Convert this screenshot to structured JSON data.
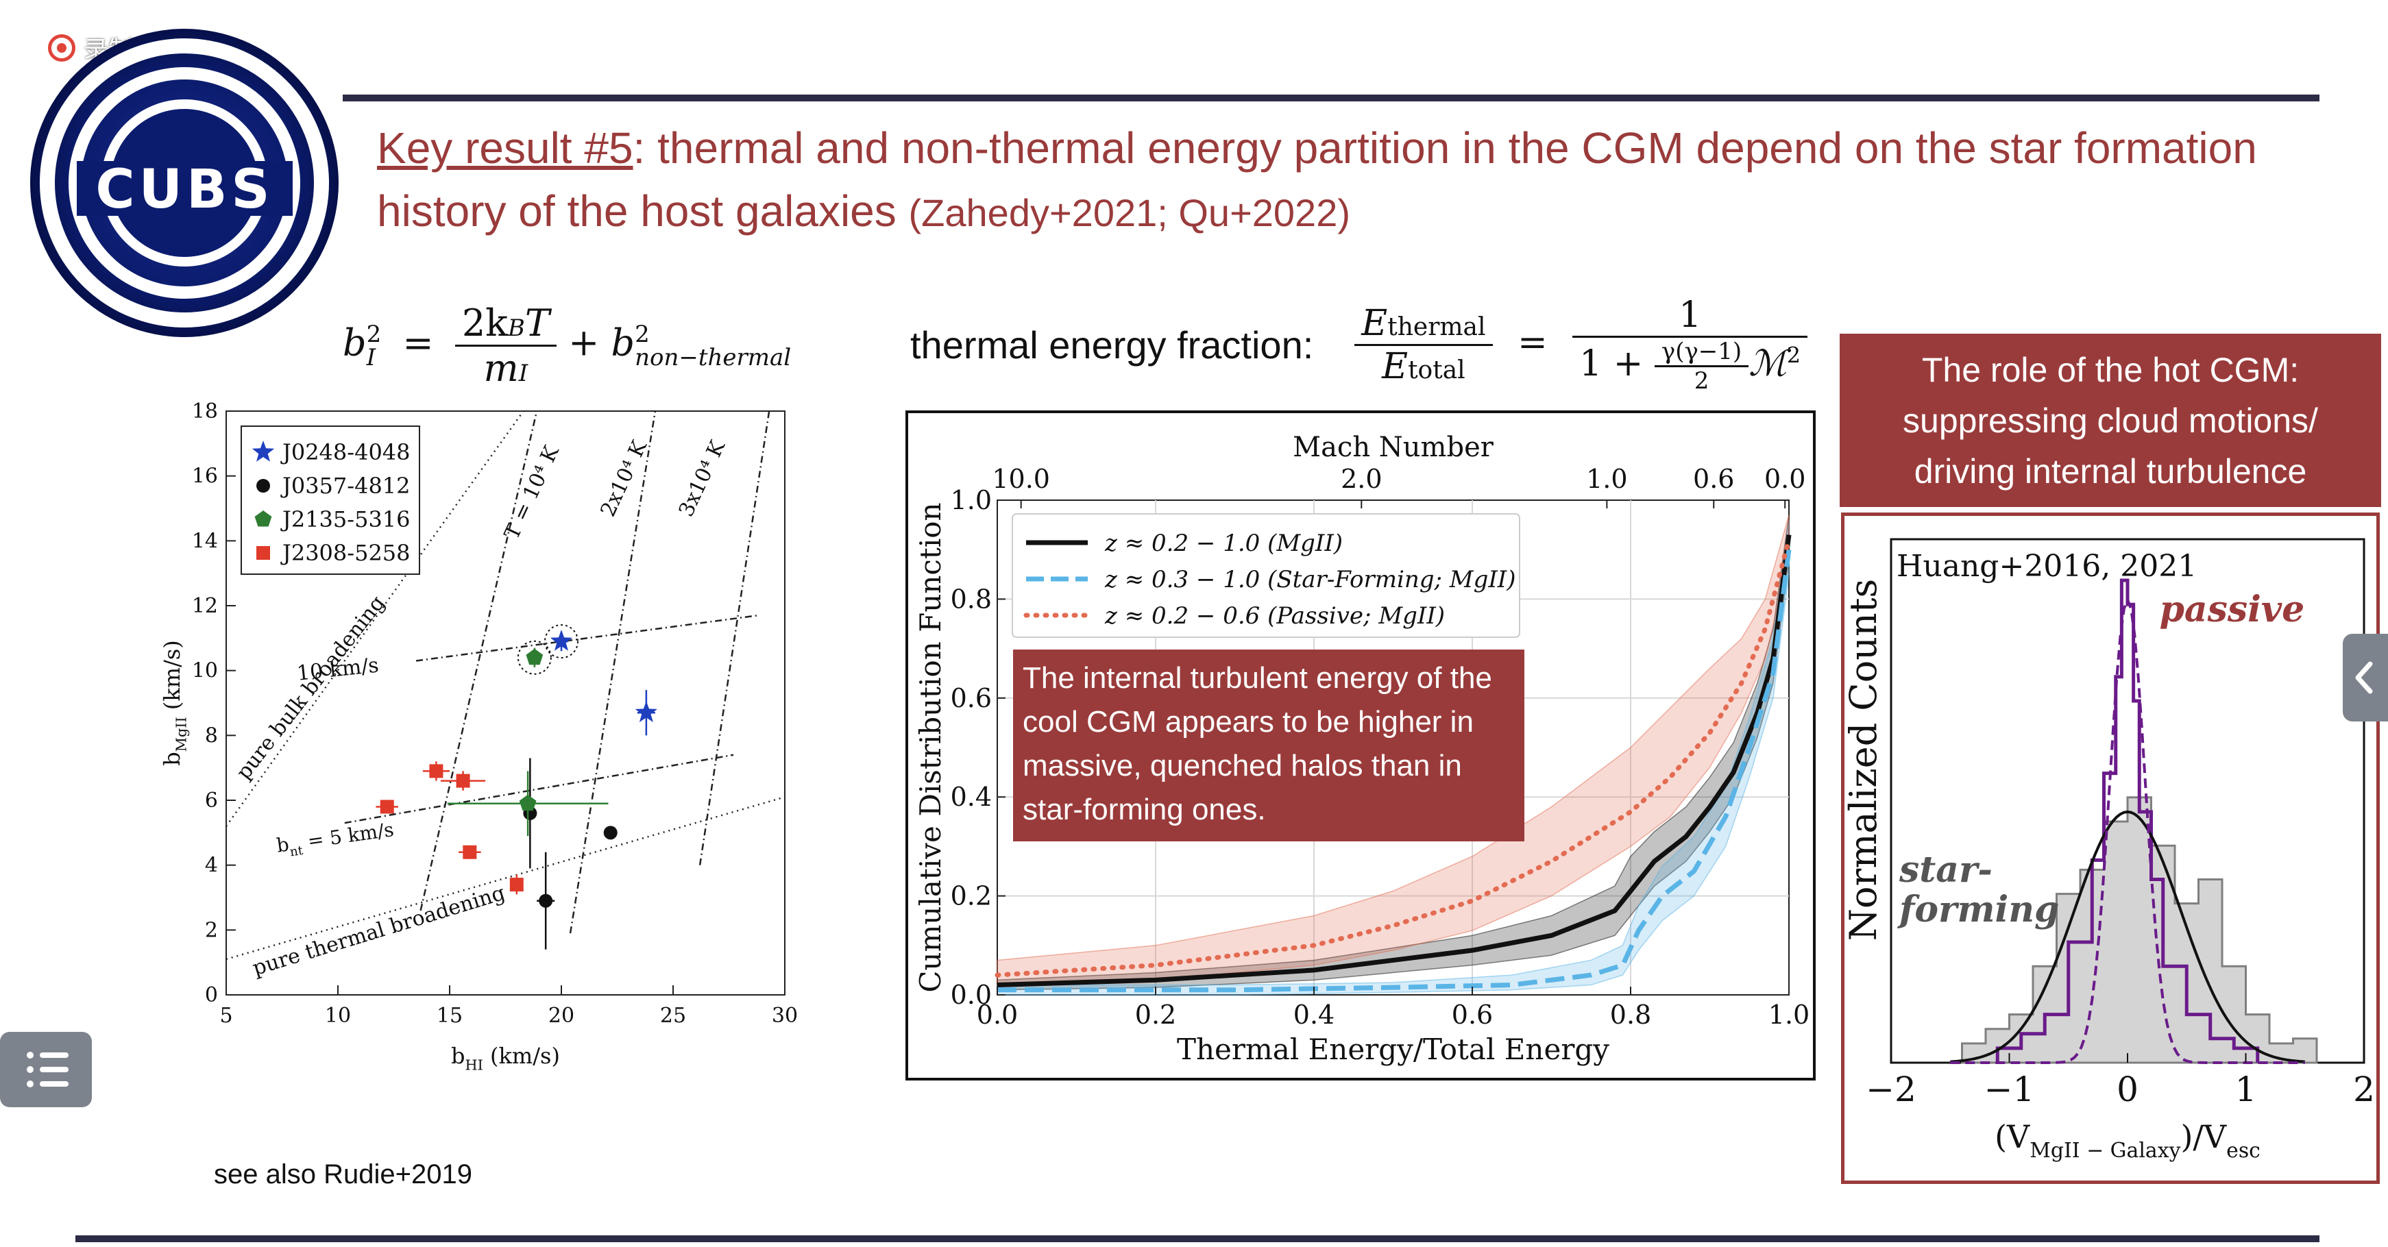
{
  "recording": {
    "label": "录制中"
  },
  "logo": {
    "text": "CUBS"
  },
  "title": {
    "key_label": "Key result #5",
    "rest": ": thermal and non-thermal energy partition in the CGM depend on the star formation history of the host galaxies",
    "citation": "(Zahedy+2021; Qu+2022)"
  },
  "equation_left": {
    "lhs": "b",
    "lhs_sup": "2",
    "lhs_sub": "I",
    "num": "2k",
    "num_sub": "B",
    "num_t": "T",
    "den": "m",
    "den_sub": "I",
    "plus": "+ b",
    "rhs_sup": "2",
    "rhs_sub": "non−thermal"
  },
  "equation_right": {
    "label": "thermal energy fraction:",
    "lhs_num": "E",
    "lhs_num_sub": "thermal",
    "lhs_den": "E",
    "lhs_den_sub": "total",
    "one": "1",
    "den_pre": "1 +",
    "gamma_num": "γ(γ−1)",
    "gamma_den": "2",
    "mach": "ℳ",
    "mach_sup": "2"
  },
  "side_panel": {
    "heading": "The role of the hot CGM: suppressing cloud motions/ driving internal turbulence"
  },
  "see_also": "see also Rudie+2019",
  "colors": {
    "accent": "#9a3b3b",
    "rule": "#2c2c46",
    "blue": "#1f3fbf",
    "green": "#2e7d32",
    "red": "#e03a2a",
    "purple": "#6a1b8a",
    "cyan": "#5ab4e6",
    "salmon": "#e36b52"
  },
  "chart_data": [
    {
      "type": "scatter",
      "xlabel": "b",
      "xlabel_sub": "HI",
      "xlabel_unit": " (km/s)",
      "ylabel": "b",
      "ylabel_sub": "MgII",
      "ylabel_unit": " (km/s)",
      "xlim": [
        5,
        30
      ],
      "ylim": [
        0,
        18
      ],
      "xticks": [
        5,
        10,
        15,
        20,
        25,
        30
      ],
      "yticks": [
        0,
        2,
        4,
        6,
        8,
        10,
        12,
        14,
        16,
        18
      ],
      "legend_position": "top-left",
      "series": [
        {
          "name": "J0248-4048",
          "marker": "star",
          "color": "#1f3fbf",
          "points": [
            {
              "x": 20.0,
              "y": 10.9,
              "xerr": 0.3,
              "yerr": 0.3,
              "circled": true
            },
            {
              "x": 23.8,
              "y": 8.7,
              "xerr": 0.4,
              "yerr": 0.7,
              "circled": false
            }
          ]
        },
        {
          "name": "J0357-4812",
          "marker": "circle",
          "color": "#111111",
          "points": [
            {
              "x": 18.6,
              "y": 5.6,
              "xerr": 0.3,
              "yerr": 1.7
            },
            {
              "x": 22.2,
              "y": 5.0,
              "xerr": 0.2,
              "yerr": 0.2
            },
            {
              "x": 19.3,
              "y": 2.9,
              "xerr": 0.4,
              "yerr": 1.5
            }
          ]
        },
        {
          "name": "J2135-5316",
          "marker": "pentagon",
          "color": "#2e7d32",
          "points": [
            {
              "x": 18.8,
              "y": 10.4,
              "xerr": 0.3,
              "yerr": 0.3,
              "circled": true
            },
            {
              "x": 18.5,
              "y": 5.9,
              "xerr": 3.6,
              "yerr": 1.0
            }
          ]
        },
        {
          "name": "J2308-5258",
          "marker": "square",
          "color": "#e03a2a",
          "points": [
            {
              "x": 12.2,
              "y": 5.8,
              "xerr": 0.5,
              "yerr": 0.1
            },
            {
              "x": 14.4,
              "y": 6.9,
              "xerr": 0.6,
              "yerr": 0.3
            },
            {
              "x": 15.6,
              "y": 6.6,
              "xerr": 1.0,
              "yerr": 0.3
            },
            {
              "x": 15.9,
              "y": 4.4,
              "xerr": 0.5,
              "yerr": 0.1
            },
            {
              "x": 18.0,
              "y": 3.4,
              "xerr": 0.2,
              "yerr": 0.3
            }
          ]
        }
      ],
      "lines": [
        {
          "label": "pure bulk broadening",
          "from": [
            5,
            5.2
          ],
          "to": [
            18.3,
            18
          ]
        },
        {
          "label": "pure thermal broadening",
          "from": [
            5,
            1.1
          ],
          "to": [
            30,
            6.1
          ]
        },
        {
          "label": "T = 10⁴ K",
          "from": [
            13.7,
            2.6
          ],
          "to": [
            18.9,
            18
          ]
        },
        {
          "label": "2x10⁴ K",
          "from": [
            20.4,
            1.9
          ],
          "to": [
            24.2,
            18
          ]
        },
        {
          "label": "3x10⁴ K",
          "from": [
            26.2,
            4.0
          ],
          "to": [
            29.3,
            18
          ]
        },
        {
          "label": "10 km/s",
          "from": [
            13.5,
            10.3
          ],
          "to": [
            28.8,
            11.7
          ]
        },
        {
          "label": "b_nt = 5 km/s",
          "from": [
            10.3,
            5.3
          ],
          "to": [
            27.7,
            7.4
          ]
        }
      ],
      "line_labels": {
        "bulk": "pure bulk broadening",
        "thermal": "pure thermal broadening",
        "t1": "T = 10⁴ K",
        "t2": "2x10⁴ K",
        "t3": "3x10⁴ K",
        "nt10": "10 km/s",
        "nt5_pre": "b",
        "nt5_sub": "nt",
        "nt5_post": " = 5 km/s"
      }
    },
    {
      "type": "line",
      "xlabel": "Thermal Energy/Total Energy",
      "ylabel": "Cumulative Distribution Function",
      "top_axis_label": "Mach Number",
      "top_ticks": [
        {
          "label": "10.0",
          "x": 0.03
        },
        {
          "label": "2.0",
          "x": 0.46
        },
        {
          "label": "1.0",
          "x": 0.77
        },
        {
          "label": "0.6",
          "x": 0.905
        },
        {
          "label": "0.0",
          "x": 0.995
        }
      ],
      "xlim": [
        0.0,
        1.0
      ],
      "ylim": [
        0.0,
        1.0
      ],
      "xticks": [
        "0.0",
        "0.2",
        "0.4",
        "0.6",
        "0.8",
        "1.0"
      ],
      "yticks": [
        "0.0",
        "0.2",
        "0.4",
        "0.6",
        "0.8",
        "1.0"
      ],
      "legend_position": "top-left",
      "series": [
        {
          "name": "z ≈ 0.2 − 1.0 (MgII)",
          "style": "solid",
          "color": "#111111",
          "x": [
            0.0,
            0.2,
            0.4,
            0.6,
            0.7,
            0.78,
            0.8,
            0.83,
            0.87,
            0.9,
            0.93,
            0.96,
            0.98,
            1.0
          ],
          "y": [
            0.02,
            0.03,
            0.05,
            0.09,
            0.12,
            0.17,
            0.21,
            0.27,
            0.32,
            0.38,
            0.45,
            0.57,
            0.68,
            0.93
          ],
          "band_low": [
            0.01,
            0.015,
            0.03,
            0.06,
            0.08,
            0.12,
            0.16,
            0.22,
            0.27,
            0.33,
            0.4,
            0.52,
            0.63,
            0.88
          ],
          "band_high": [
            0.03,
            0.045,
            0.07,
            0.12,
            0.16,
            0.22,
            0.28,
            0.33,
            0.38,
            0.44,
            0.51,
            0.63,
            0.74,
            0.97
          ]
        },
        {
          "name": "z ≈ 0.3 − 1.0 (Star-Forming; MgII)",
          "style": "dashed",
          "color": "#5ab4e6",
          "x": [
            0.0,
            0.3,
            0.5,
            0.65,
            0.75,
            0.79,
            0.81,
            0.84,
            0.88,
            0.92,
            0.95,
            0.98,
            1.0
          ],
          "y": [
            0.01,
            0.01,
            0.015,
            0.02,
            0.04,
            0.06,
            0.13,
            0.2,
            0.25,
            0.36,
            0.5,
            0.65,
            0.9
          ],
          "band_low": [
            0.0,
            0.0,
            0.005,
            0.01,
            0.02,
            0.04,
            0.09,
            0.15,
            0.2,
            0.3,
            0.44,
            0.6,
            0.85
          ],
          "band_high": [
            0.02,
            0.02,
            0.025,
            0.04,
            0.07,
            0.1,
            0.18,
            0.26,
            0.32,
            0.42,
            0.56,
            0.72,
            0.96
          ]
        },
        {
          "name": "z ≈ 0.2 − 0.6 (Passive; MgII)",
          "style": "dotted",
          "color": "#e36b52",
          "x": [
            0.0,
            0.2,
            0.4,
            0.5,
            0.6,
            0.7,
            0.8,
            0.85,
            0.9,
            0.94,
            0.97,
            1.0
          ],
          "y": [
            0.04,
            0.06,
            0.1,
            0.14,
            0.19,
            0.27,
            0.37,
            0.44,
            0.53,
            0.63,
            0.74,
            0.92
          ],
          "band_low": [
            0.02,
            0.03,
            0.06,
            0.09,
            0.13,
            0.2,
            0.3,
            0.36,
            0.46,
            0.57,
            0.68,
            0.88
          ],
          "band_high": [
            0.07,
            0.1,
            0.16,
            0.21,
            0.28,
            0.38,
            0.5,
            0.58,
            0.66,
            0.72,
            0.8,
            0.97
          ]
        }
      ],
      "annotation": "The internal turbulent energy of the cool CGM appears to be higher in massive, quenched halos than in star-forming ones."
    },
    {
      "type": "histogram",
      "xlabel_pre": "(V",
      "xlabel_sub": "MgII − Galaxy",
      "xlabel_mid": ")/V",
      "xlabel_sub2": "esc",
      "ylabel": "Normalized Counts",
      "inset_title": "Huang+2016, 2021",
      "xlim": [
        -2.0,
        2.0
      ],
      "xticks": [
        "−2",
        "−1",
        "0",
        "1",
        "2"
      ],
      "labels": {
        "passive": "passive",
        "star_forming_1": "star-",
        "star_forming_2": "forming"
      },
      "series": [
        {
          "name": "passive",
          "color": "#6a1b8a",
          "bin_edges": [
            -1.1,
            -0.9,
            -0.7,
            -0.5,
            -0.3,
            -0.2,
            -0.1,
            -0.05,
            0.0,
            0.05,
            0.1,
            0.2,
            0.3,
            0.5,
            0.7,
            0.9,
            1.1
          ],
          "counts": [
            0.03,
            0.06,
            0.1,
            0.25,
            0.42,
            0.6,
            0.8,
            1.0,
            0.95,
            0.75,
            0.52,
            0.38,
            0.2,
            0.1,
            0.05,
            0.03
          ]
        },
        {
          "name": "star-forming",
          "color": "#7f7f7f",
          "bin_edges": [
            -1.4,
            -1.2,
            -1.0,
            -0.8,
            -0.6,
            -0.4,
            -0.2,
            0.0,
            0.2,
            0.4,
            0.6,
            0.8,
            1.0,
            1.2,
            1.4,
            1.6
          ],
          "counts": [
            0.04,
            0.07,
            0.1,
            0.2,
            0.35,
            0.4,
            0.5,
            0.55,
            0.45,
            0.33,
            0.38,
            0.2,
            0.1,
            0.04,
            0.05
          ]
        }
      ]
    }
  ]
}
